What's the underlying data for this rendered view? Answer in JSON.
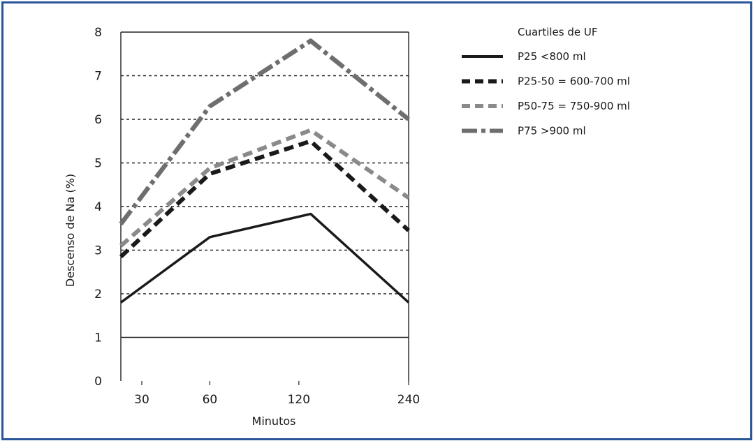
{
  "chart_data": {
    "type": "line",
    "title": "",
    "xlabel": "Minutos",
    "ylabel": "Descenso de Na (%)",
    "categories": [
      "30",
      "60",
      "120",
      "240"
    ],
    "ylim": [
      0,
      8
    ],
    "yticks": [
      "0",
      "1",
      "2",
      "3",
      "4",
      "5",
      "6",
      "7",
      "8"
    ],
    "x_positions": [
      0,
      30,
      60,
      90
    ],
    "grid": "horizontal dotted",
    "legend_title": "Cuartiles de UF",
    "legend_position": "right",
    "series": [
      {
        "name": "P25 <800 ml",
        "x": [
          0,
          30,
          64,
          97
        ],
        "values": [
          1.8,
          3.3,
          3.83,
          1.8
        ],
        "color": "#1a1a1a",
        "style": "solid"
      },
      {
        "name": "P25-50 = 600-700 ml",
        "x": [
          0,
          30,
          64,
          97
        ],
        "values": [
          2.85,
          4.75,
          5.5,
          3.45
        ],
        "color": "#1a1a1a",
        "style": "dashed"
      },
      {
        "name": "P50-75 = 750-900 ml",
        "x": [
          0,
          30,
          64,
          97
        ],
        "values": [
          3.1,
          4.88,
          5.75,
          4.2
        ],
        "color": "#8a8a8a",
        "style": "dashed"
      },
      {
        "name": "P75 >900 ml",
        "x": [
          0,
          30,
          64,
          97
        ],
        "values": [
          3.6,
          6.3,
          7.8,
          6.0
        ],
        "color": "#6e6e6e",
        "style": "dashdot"
      }
    ]
  }
}
